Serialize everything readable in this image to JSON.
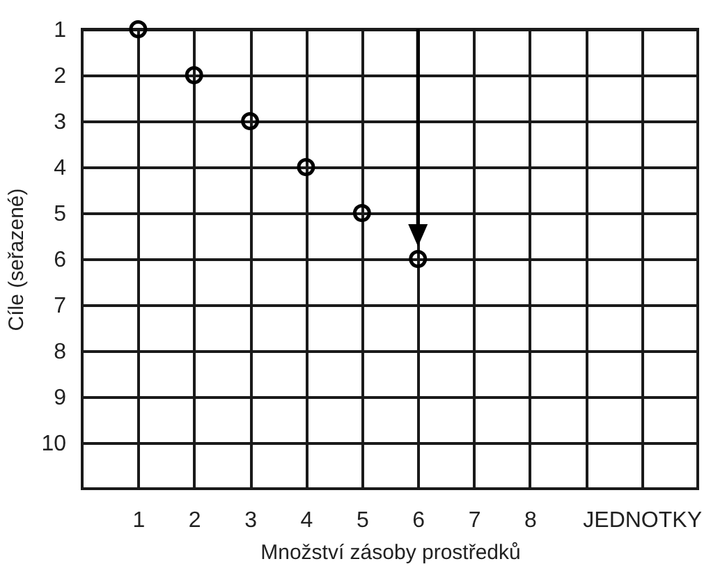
{
  "chart_data": {
    "type": "scatter",
    "xlabel": "Množství zásoby prostředků",
    "ylabel": "Cíle (seřazené)",
    "x": [
      1,
      2,
      3,
      4,
      5,
      6
    ],
    "series": [
      {
        "color": "#000000",
        "values": [
          1,
          2,
          3,
          4,
          5,
          6
        ]
      }
    ],
    "xlim": [
      0,
      11
    ],
    "xticks": [
      1,
      2,
      3,
      4,
      5,
      6,
      7,
      8,
      {
        "value": 9,
        "label": null
      },
      {
        "value": 10,
        "label": "JEDNOTKY"
      }
    ],
    "ylim": [
      11,
      1
    ],
    "yticks": [
      1,
      2,
      3,
      4,
      5,
      6,
      7,
      8,
      9,
      10
    ],
    "grid": true,
    "marker": "circle"
  }
}
